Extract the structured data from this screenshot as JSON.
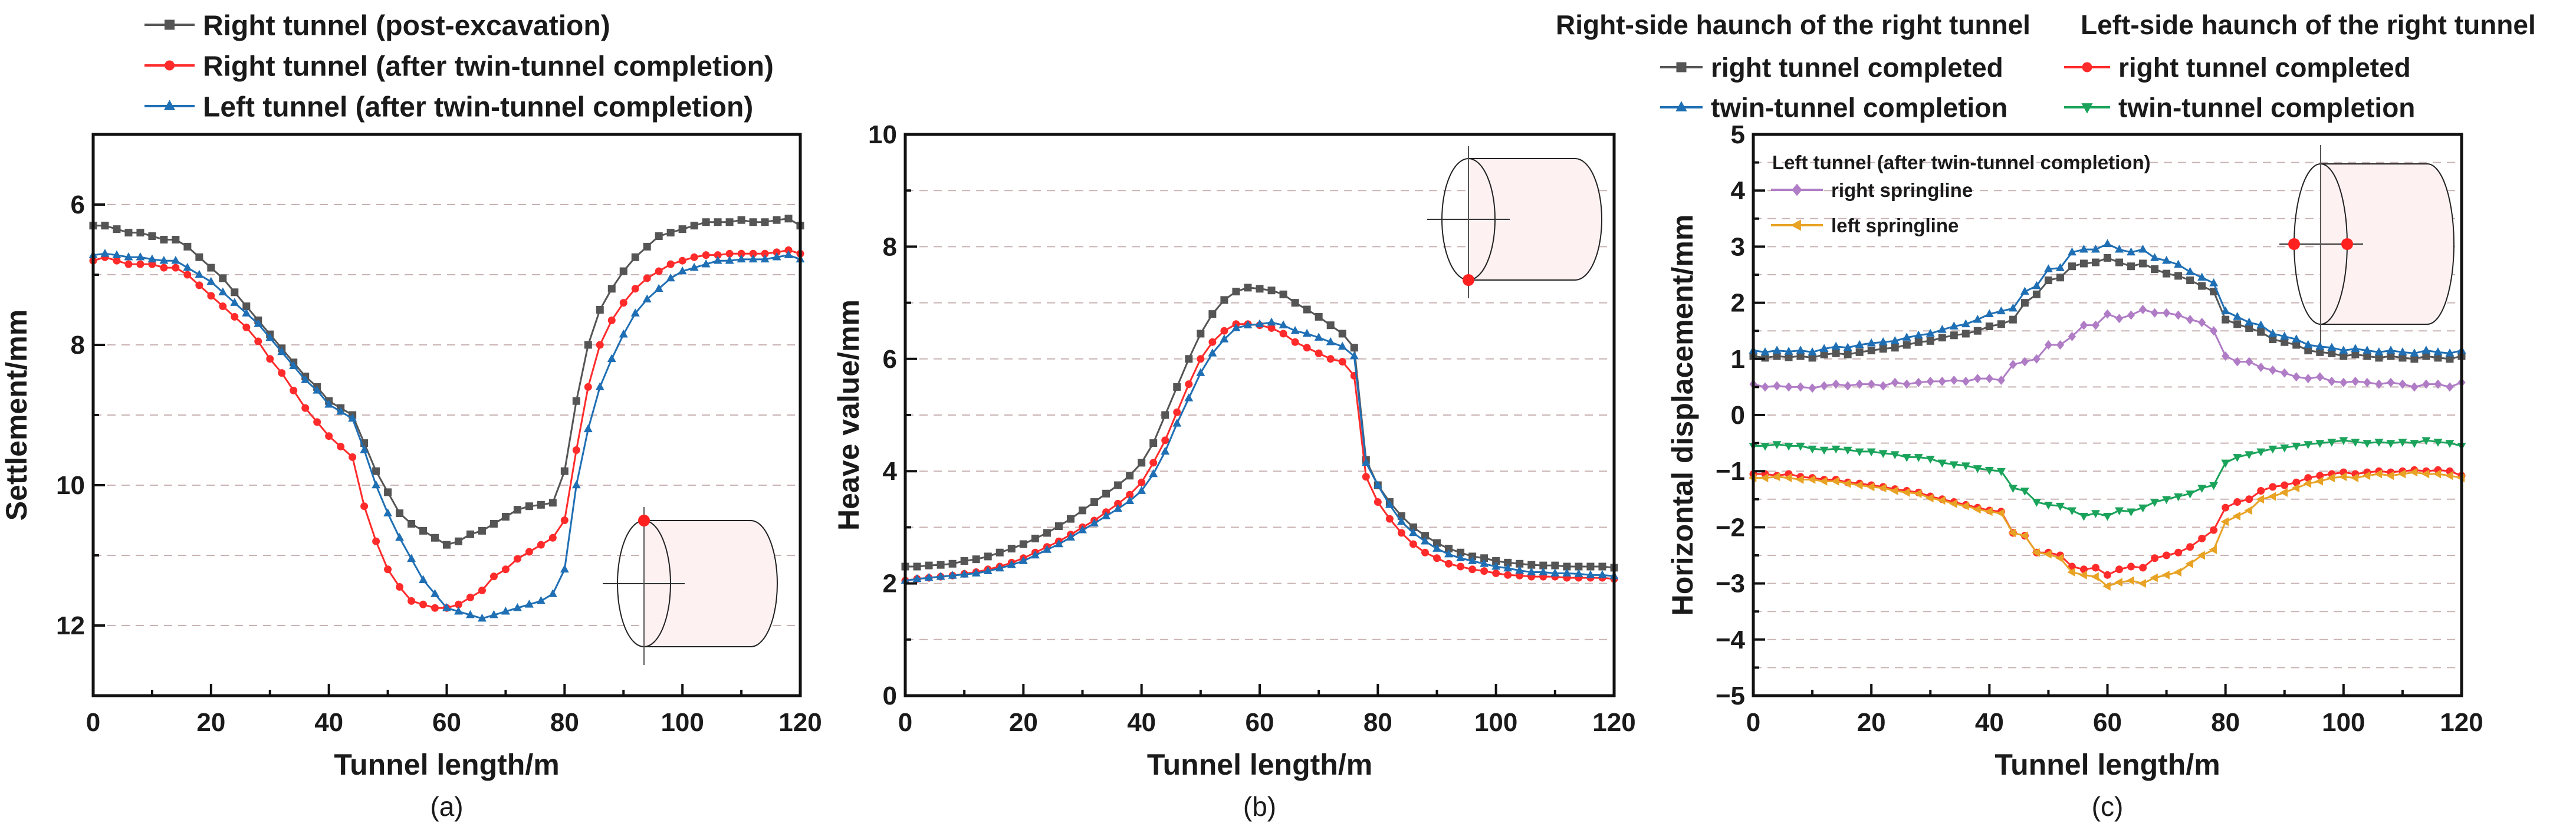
{
  "chart_data": [
    {
      "panel_label": "(a)",
      "type": "line",
      "xlabel": "Tunnel length/m",
      "ylabel": "Settlement/mm",
      "xlim": [
        0,
        120
      ],
      "ylim": [
        5,
        13
      ],
      "y_inverted": true,
      "xticks": [
        0,
        20,
        40,
        60,
        80,
        100,
        120
      ],
      "yticks": [
        6,
        8,
        10,
        12
      ],
      "grid": "horizontal dashed",
      "legend": "top-left, above plot",
      "x": [
        0,
        2,
        4,
        6,
        8,
        10,
        12,
        14,
        16,
        18,
        20,
        22,
        24,
        26,
        28,
        30,
        32,
        34,
        36,
        38,
        40,
        42,
        44,
        46,
        48,
        50,
        52,
        54,
        56,
        58,
        60,
        62,
        64,
        66,
        68,
        70,
        72,
        74,
        76,
        78,
        80,
        82,
        84,
        86,
        88,
        90,
        92,
        94,
        96,
        98,
        100,
        102,
        104,
        106,
        108,
        110,
        112,
        114,
        116,
        118,
        120
      ],
      "series": [
        {
          "name": "Right tunnel (post-excavation)",
          "color": "#555555",
          "marker": "square",
          "values": [
            6.3,
            6.3,
            6.35,
            6.4,
            6.4,
            6.45,
            6.5,
            6.5,
            6.6,
            6.75,
            6.9,
            7.05,
            7.25,
            7.45,
            7.65,
            7.85,
            8.05,
            8.25,
            8.45,
            8.6,
            8.8,
            8.9,
            9.0,
            9.4,
            9.8,
            10.1,
            10.4,
            10.55,
            10.65,
            10.75,
            10.85,
            10.8,
            10.7,
            10.65,
            10.55,
            10.45,
            10.35,
            10.3,
            10.28,
            10.25,
            9.8,
            8.8,
            8.0,
            7.5,
            7.2,
            6.95,
            6.75,
            6.6,
            6.45,
            6.4,
            6.35,
            6.3,
            6.25,
            6.25,
            6.25,
            6.22,
            6.25,
            6.25,
            6.22,
            6.2,
            6.3
          ]
        },
        {
          "name": "Right tunnel (after twin-tunnel completion)",
          "color": "#ff2b2b",
          "marker": "circle",
          "values": [
            6.8,
            6.75,
            6.8,
            6.85,
            6.85,
            6.85,
            6.9,
            6.9,
            7.0,
            7.15,
            7.3,
            7.45,
            7.6,
            7.75,
            7.95,
            8.2,
            8.4,
            8.65,
            8.9,
            9.1,
            9.3,
            9.45,
            9.6,
            10.3,
            10.8,
            11.2,
            11.45,
            11.65,
            11.7,
            11.75,
            11.75,
            11.7,
            11.6,
            11.5,
            11.3,
            11.2,
            11.05,
            10.95,
            10.85,
            10.75,
            10.5,
            9.5,
            8.6,
            8.0,
            7.65,
            7.4,
            7.2,
            7.05,
            6.95,
            6.85,
            6.8,
            6.75,
            6.72,
            6.72,
            6.7,
            6.7,
            6.7,
            6.7,
            6.68,
            6.65,
            6.7
          ]
        },
        {
          "name": "Left tunnel (after twin-tunnel completion)",
          "color": "#1f6fb4",
          "marker": "triangle-up",
          "values": [
            6.72,
            6.7,
            6.72,
            6.75,
            6.75,
            6.78,
            6.8,
            6.8,
            6.9,
            7.0,
            7.1,
            7.25,
            7.4,
            7.55,
            7.7,
            7.9,
            8.1,
            8.3,
            8.5,
            8.65,
            8.85,
            8.95,
            9.05,
            9.5,
            10.0,
            10.4,
            10.75,
            11.05,
            11.35,
            11.55,
            11.75,
            11.8,
            11.85,
            11.9,
            11.85,
            11.8,
            11.75,
            11.7,
            11.65,
            11.55,
            11.2,
            10.0,
            9.2,
            8.6,
            8.2,
            7.85,
            7.55,
            7.35,
            7.2,
            7.05,
            6.95,
            6.9,
            6.85,
            6.8,
            6.8,
            6.78,
            6.78,
            6.78,
            6.75,
            6.72,
            6.78
          ]
        }
      ],
      "inset_marker": "crown of tunnel (top)"
    },
    {
      "panel_label": "(b)",
      "type": "line",
      "xlabel": "Tunnel length/m",
      "ylabel": "Heave value/mm",
      "xlim": [
        0,
        120
      ],
      "ylim": [
        0,
        10
      ],
      "xticks": [
        0,
        20,
        40,
        60,
        80,
        100,
        120
      ],
      "yticks": [
        0,
        2,
        4,
        6,
        8,
        10
      ],
      "grid": "horizontal dashed",
      "x": [
        0,
        2,
        4,
        6,
        8,
        10,
        12,
        14,
        16,
        18,
        20,
        22,
        24,
        26,
        28,
        30,
        32,
        34,
        36,
        38,
        40,
        42,
        44,
        46,
        48,
        50,
        52,
        54,
        56,
        58,
        60,
        62,
        64,
        66,
        68,
        70,
        72,
        74,
        76,
        78,
        80,
        82,
        84,
        86,
        88,
        90,
        92,
        94,
        96,
        98,
        100,
        102,
        104,
        106,
        108,
        110,
        112,
        114,
        116,
        118,
        120
      ],
      "series": [
        {
          "color": "#555555",
          "marker": "square",
          "values": [
            2.3,
            2.3,
            2.32,
            2.33,
            2.35,
            2.4,
            2.43,
            2.48,
            2.55,
            2.62,
            2.7,
            2.8,
            2.9,
            3.02,
            3.15,
            3.3,
            3.45,
            3.6,
            3.75,
            3.92,
            4.15,
            4.5,
            5.0,
            5.5,
            6.0,
            6.45,
            6.8,
            7.05,
            7.2,
            7.27,
            7.25,
            7.22,
            7.15,
            7.0,
            6.88,
            6.75,
            6.6,
            6.45,
            6.2,
            4.2,
            3.75,
            3.45,
            3.2,
            3.0,
            2.85,
            2.72,
            2.62,
            2.55,
            2.48,
            2.45,
            2.4,
            2.37,
            2.35,
            2.33,
            2.32,
            2.32,
            2.3,
            2.3,
            2.3,
            2.3,
            2.28
          ]
        },
        {
          "color": "#ff2b2b",
          "marker": "circle",
          "values": [
            2.05,
            2.08,
            2.1,
            2.12,
            2.14,
            2.17,
            2.2,
            2.25,
            2.3,
            2.37,
            2.45,
            2.55,
            2.65,
            2.75,
            2.87,
            3.0,
            3.12,
            3.27,
            3.42,
            3.58,
            3.8,
            4.15,
            4.55,
            5.05,
            5.55,
            6.0,
            6.3,
            6.5,
            6.62,
            6.62,
            6.6,
            6.55,
            6.45,
            6.3,
            6.2,
            6.1,
            6.0,
            5.95,
            5.7,
            3.9,
            3.45,
            3.15,
            2.9,
            2.7,
            2.55,
            2.45,
            2.35,
            2.3,
            2.25,
            2.22,
            2.18,
            2.15,
            2.14,
            2.12,
            2.12,
            2.12,
            2.1,
            2.1,
            2.1,
            2.1,
            2.08
          ]
        },
        {
          "color": "#1f6fb4",
          "marker": "triangle-up",
          "values": [
            2.05,
            2.08,
            2.1,
            2.12,
            2.14,
            2.16,
            2.18,
            2.22,
            2.27,
            2.33,
            2.4,
            2.5,
            2.6,
            2.7,
            2.82,
            2.95,
            3.07,
            3.2,
            3.33,
            3.47,
            3.65,
            3.95,
            4.35,
            4.85,
            5.3,
            5.75,
            6.1,
            6.35,
            6.55,
            6.6,
            6.62,
            6.65,
            6.6,
            6.5,
            6.45,
            6.38,
            6.3,
            6.22,
            6.05,
            4.15,
            3.75,
            3.4,
            3.1,
            2.9,
            2.75,
            2.62,
            2.52,
            2.45,
            2.4,
            2.35,
            2.3,
            2.27,
            2.23,
            2.2,
            2.2,
            2.18,
            2.18,
            2.17,
            2.15,
            2.15,
            2.13
          ]
        }
      ],
      "inset_marker": "invert of tunnel (bottom)"
    },
    {
      "panel_label": "(c)",
      "type": "line",
      "xlabel": "Tunnel length/m",
      "ylabel": "Horizontal displacement/mm",
      "xlim": [
        0,
        120
      ],
      "ylim": [
        -5,
        5
      ],
      "xticks": [
        0,
        20,
        40,
        60,
        80,
        100,
        120
      ],
      "yticks": [
        -5,
        -4,
        -3,
        -2,
        -1,
        0,
        1,
        2,
        3,
        4,
        5
      ],
      "ytick_labels": [
        "−5",
        "−4",
        "−3",
        "−2",
        "−1",
        "0",
        "1",
        "2",
        "3",
        "4",
        "5"
      ],
      "grid": "horizontal dashed",
      "legend_groups": [
        {
          "title": "Right-side haunch of the right tunnel",
          "entries": [
            0,
            1
          ]
        },
        {
          "title": "Left-side haunch of the right tunnel",
          "entries": [
            2,
            3
          ]
        },
        {
          "title": "Left tunnel (after twin-tunnel completion)",
          "entries": [
            4,
            5
          ]
        }
      ],
      "x": [
        0,
        2,
        4,
        6,
        8,
        10,
        12,
        14,
        16,
        18,
        20,
        22,
        24,
        26,
        28,
        30,
        32,
        34,
        36,
        38,
        40,
        42,
        44,
        46,
        48,
        50,
        52,
        54,
        56,
        58,
        60,
        62,
        64,
        66,
        68,
        70,
        72,
        74,
        76,
        78,
        80,
        82,
        84,
        86,
        88,
        90,
        92,
        94,
        96,
        98,
        100,
        102,
        104,
        106,
        108,
        110,
        112,
        114,
        116,
        118,
        120
      ],
      "series": [
        {
          "name": "right tunnel completed",
          "color": "#555555",
          "marker": "square",
          "values": [
            1.05,
            1.02,
            1.05,
            1.03,
            1.05,
            1.02,
            1.08,
            1.1,
            1.08,
            1.12,
            1.15,
            1.18,
            1.2,
            1.25,
            1.3,
            1.32,
            1.38,
            1.42,
            1.45,
            1.5,
            1.58,
            1.62,
            1.7,
            2.0,
            2.15,
            2.4,
            2.45,
            2.65,
            2.7,
            2.72,
            2.8,
            2.72,
            2.65,
            2.7,
            2.6,
            2.52,
            2.48,
            2.4,
            2.3,
            2.2,
            1.7,
            1.62,
            1.55,
            1.48,
            1.35,
            1.3,
            1.25,
            1.15,
            1.12,
            1.1,
            1.05,
            1.08,
            1.05,
            1.02,
            1.05,
            1.02,
            1.0,
            1.05,
            1.02,
            1.0,
            1.05
          ]
        },
        {
          "name": "twin-tunnel completion",
          "color": "#1f6fb4",
          "marker": "triangle-up",
          "values": [
            1.15,
            1.12,
            1.15,
            1.13,
            1.15,
            1.12,
            1.18,
            1.22,
            1.2,
            1.25,
            1.28,
            1.3,
            1.32,
            1.38,
            1.42,
            1.45,
            1.52,
            1.58,
            1.62,
            1.7,
            1.8,
            1.85,
            1.9,
            2.2,
            2.3,
            2.6,
            2.62,
            2.9,
            2.95,
            2.95,
            3.05,
            2.95,
            2.9,
            2.95,
            2.8,
            2.75,
            2.68,
            2.55,
            2.45,
            2.35,
            1.85,
            1.75,
            1.65,
            1.6,
            1.45,
            1.4,
            1.35,
            1.25,
            1.22,
            1.2,
            1.15,
            1.18,
            1.15,
            1.12,
            1.15,
            1.12,
            1.1,
            1.15,
            1.12,
            1.1,
            1.15
          ]
        },
        {
          "name": "right tunnel completed",
          "color": "#ff2b2b",
          "marker": "circle",
          "values": [
            -1.05,
            -1.05,
            -1.08,
            -1.05,
            -1.1,
            -1.12,
            -1.15,
            -1.15,
            -1.2,
            -1.22,
            -1.25,
            -1.28,
            -1.32,
            -1.35,
            -1.38,
            -1.45,
            -1.5,
            -1.55,
            -1.6,
            -1.65,
            -1.7,
            -1.72,
            -2.1,
            -2.15,
            -2.45,
            -2.45,
            -2.5,
            -2.7,
            -2.75,
            -2.72,
            -2.85,
            -2.75,
            -2.7,
            -2.72,
            -2.55,
            -2.5,
            -2.45,
            -2.35,
            -2.2,
            -2.05,
            -1.65,
            -1.55,
            -1.5,
            -1.35,
            -1.28,
            -1.25,
            -1.2,
            -1.12,
            -1.08,
            -1.05,
            -1.02,
            -1.05,
            -1.02,
            -1.0,
            -1.02,
            -1.0,
            -0.98,
            -1.0,
            -0.98,
            -1.0,
            -1.08
          ]
        },
        {
          "name": "twin-tunnel completion",
          "color": "#1aa35a",
          "marker": "triangle-down",
          "values": [
            -0.55,
            -0.55,
            -0.52,
            -0.55,
            -0.55,
            -0.6,
            -0.62,
            -0.6,
            -0.62,
            -0.65,
            -0.65,
            -0.68,
            -0.7,
            -0.75,
            -0.75,
            -0.78,
            -0.85,
            -0.88,
            -0.9,
            -0.95,
            -0.98,
            -1.0,
            -1.3,
            -1.35,
            -1.55,
            -1.6,
            -1.62,
            -1.7,
            -1.8,
            -1.75,
            -1.8,
            -1.7,
            -1.72,
            -1.65,
            -1.55,
            -1.5,
            -1.45,
            -1.4,
            -1.3,
            -1.25,
            -0.85,
            -0.75,
            -0.7,
            -0.65,
            -0.6,
            -0.58,
            -0.55,
            -0.52,
            -0.5,
            -0.48,
            -0.45,
            -0.48,
            -0.5,
            -0.48,
            -0.5,
            -0.48,
            -0.5,
            -0.45,
            -0.48,
            -0.5,
            -0.55
          ]
        },
        {
          "name": "right springline",
          "color": "#b07cc6",
          "marker": "diamond",
          "values": [
            0.55,
            0.5,
            0.52,
            0.5,
            0.5,
            0.48,
            0.52,
            0.55,
            0.52,
            0.55,
            0.55,
            0.52,
            0.58,
            0.55,
            0.58,
            0.6,
            0.6,
            0.62,
            0.6,
            0.65,
            0.65,
            0.62,
            0.9,
            0.95,
            1.0,
            1.25,
            1.25,
            1.4,
            1.6,
            1.6,
            1.8,
            1.72,
            1.78,
            1.88,
            1.82,
            1.82,
            1.78,
            1.7,
            1.65,
            1.5,
            1.05,
            0.95,
            0.95,
            0.85,
            0.8,
            0.75,
            0.68,
            0.65,
            0.68,
            0.6,
            0.58,
            0.6,
            0.58,
            0.55,
            0.58,
            0.55,
            0.5,
            0.55,
            0.55,
            0.5,
            0.58
          ]
        },
        {
          "name": "left springline",
          "color": "#e8a325",
          "marker": "triangle-left",
          "values": [
            -1.12,
            -1.12,
            -1.1,
            -1.12,
            -1.15,
            -1.15,
            -1.18,
            -1.18,
            -1.22,
            -1.25,
            -1.28,
            -1.3,
            -1.35,
            -1.38,
            -1.4,
            -1.48,
            -1.52,
            -1.58,
            -1.62,
            -1.68,
            -1.72,
            -1.75,
            -2.1,
            -2.15,
            -2.45,
            -2.48,
            -2.55,
            -2.8,
            -2.85,
            -2.88,
            -3.05,
            -2.98,
            -2.95,
            -3.0,
            -2.9,
            -2.85,
            -2.8,
            -2.65,
            -2.5,
            -2.4,
            -1.9,
            -1.8,
            -1.7,
            -1.5,
            -1.45,
            -1.38,
            -1.3,
            -1.22,
            -1.18,
            -1.12,
            -1.1,
            -1.12,
            -1.08,
            -1.05,
            -1.08,
            -1.05,
            -1.02,
            -1.05,
            -1.05,
            -1.08,
            -1.12
          ]
        }
      ],
      "inset_marker": "springlines of tunnel (left and right)"
    }
  ]
}
